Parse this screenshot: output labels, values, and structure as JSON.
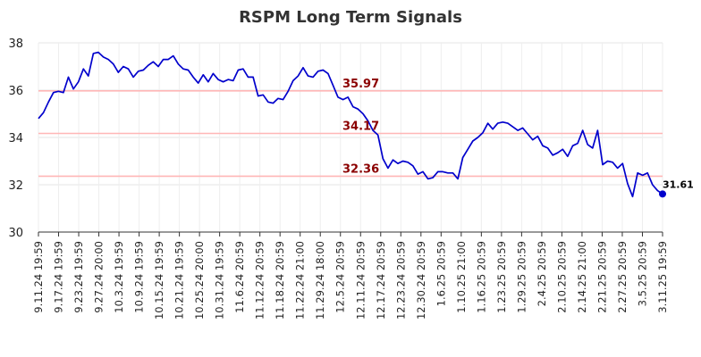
{
  "chart_data": {
    "type": "line",
    "title": "RSPM Long Term Signals",
    "xlabel": "",
    "ylabel": "",
    "ylim": [
      30,
      38
    ],
    "yticks": [
      30,
      32,
      34,
      36,
      38
    ],
    "grid": true,
    "x_tick_labels": [
      "9.11.24 19:59",
      "9.17.24 19:59",
      "9.23.24 19:59",
      "9.27.24 20:00",
      "10.3.24 19:59",
      "10.9.24 19:59",
      "10.15.24 19:59",
      "10.21.24 19:59",
      "10.25.24 20:00",
      "10.31.24 19:59",
      "11.6.24 20:59",
      "11.12.24 20:59",
      "11.18.24 20:59",
      "11.22.24 21:00",
      "11.29.24 18:00",
      "12.5.24 20:59",
      "12.11.24 20:59",
      "12.17.24 20:59",
      "12.23.24 20:59",
      "12.30.24 20:59",
      "1.6.25 20:59",
      "1.10.25 21:00",
      "1.16.25 20:59",
      "1.23.25 20:59",
      "1.29.25 20:59",
      "2.4.25 20:59",
      "2.10.25 20:59",
      "2.14.25 21:00",
      "2.21.25 20:59",
      "2.27.25 20:59",
      "3.5.25 20:59",
      "3.11.25 19:59"
    ],
    "reference_lines": [
      {
        "value": 35.97,
        "label": "35.97",
        "color": "#ffb6b6"
      },
      {
        "value": 34.17,
        "label": "34.17",
        "color": "#ffb6b6"
      },
      {
        "value": 32.36,
        "label": "32.36",
        "color": "#ffb6b6"
      }
    ],
    "series": [
      {
        "color": "#0000cc",
        "values": [
          34.8,
          35.05,
          35.5,
          35.9,
          35.95,
          35.9,
          36.55,
          36.05,
          36.35,
          36.9,
          36.6,
          37.55,
          37.6,
          37.4,
          37.3,
          37.1,
          36.75,
          37.0,
          36.9,
          36.55,
          36.8,
          36.85,
          37.05,
          37.2,
          37.0,
          37.3,
          37.3,
          37.45,
          37.1,
          36.9,
          36.85,
          36.55,
          36.3,
          36.65,
          36.35,
          36.7,
          36.45,
          36.35,
          36.45,
          36.4,
          36.85,
          36.9,
          36.55,
          36.55,
          35.75,
          35.8,
          35.5,
          35.45,
          35.65,
          35.6,
          35.95,
          36.4,
          36.6,
          36.95,
          36.6,
          36.55,
          36.8,
          36.85,
          36.7,
          36.2,
          35.7,
          35.6,
          35.7,
          35.3,
          35.2,
          35.0,
          34.7,
          34.3,
          34.1,
          33.1,
          32.7,
          33.05,
          32.9,
          33.0,
          32.95,
          32.8,
          32.45,
          32.55,
          32.25,
          32.3,
          32.55,
          32.55,
          32.5,
          32.5,
          32.25,
          33.15,
          33.5,
          33.85,
          34.0,
          34.2,
          34.6,
          34.35,
          34.6,
          34.65,
          34.6,
          34.45,
          34.3,
          34.4,
          34.15,
          33.9,
          34.05,
          33.65,
          33.55,
          33.25,
          33.35,
          33.5,
          33.2,
          33.65,
          33.75,
          34.3,
          33.7,
          33.55,
          34.3,
          32.85,
          33.0,
          32.95,
          32.7,
          32.9,
          32.05,
          31.5,
          32.5,
          32.4,
          32.5,
          32.0,
          31.75,
          31.61
        ]
      }
    ],
    "last_value": {
      "value": 31.61,
      "label": "31.61"
    }
  }
}
